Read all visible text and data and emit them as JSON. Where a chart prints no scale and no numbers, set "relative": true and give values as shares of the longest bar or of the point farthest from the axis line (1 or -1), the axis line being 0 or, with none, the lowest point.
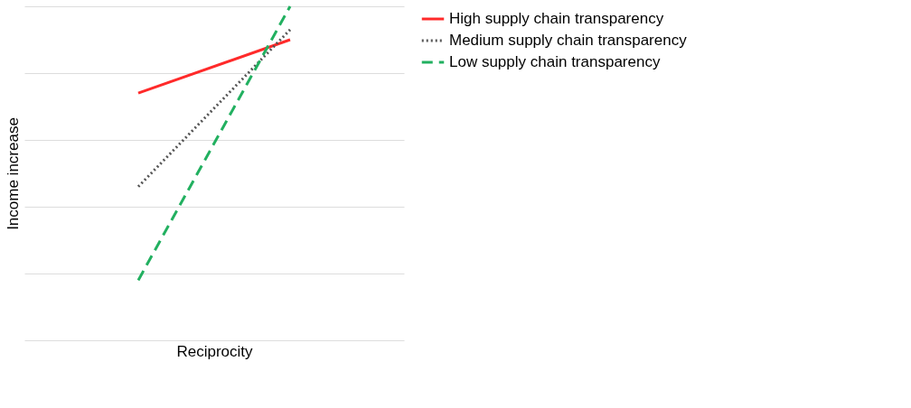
{
  "chart_data": {
    "type": "line",
    "relative": true,
    "xlabel": "Reciprocity",
    "ylabel": "Income increase",
    "categories": [
      null,
      null
    ],
    "grid": "y",
    "legend": "right",
    "series": [
      {
        "name": "High supply chain transparency",
        "color": "#ff2a2a",
        "line_style": "solid",
        "values": [
          0.74,
          0.9
        ]
      },
      {
        "name": "Medium supply chain transparency",
        "color": "#555555",
        "line_style": "dotted",
        "values": [
          0.46,
          0.93
        ]
      },
      {
        "name": "Low supply chain transparency",
        "color": "#22b060",
        "line_style": "dashed",
        "values": [
          0.18,
          1
        ]
      }
    ]
  }
}
